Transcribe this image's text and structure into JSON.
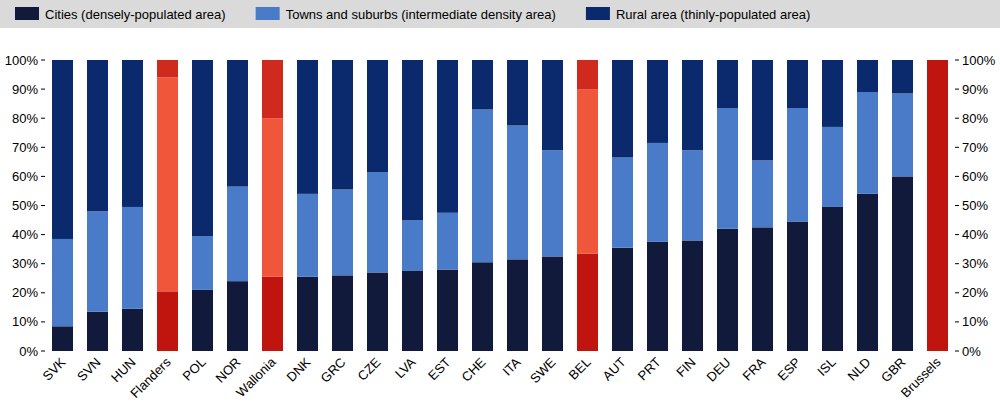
{
  "chart_data": {
    "type": "bar",
    "stacked": true,
    "legend": "top",
    "grid": false,
    "categories": [
      "SVK",
      "SVN",
      "HUN",
      "Flanders",
      "POL",
      "NOR",
      "Wallonia",
      "DNK",
      "GRC",
      "CZE",
      "LVA",
      "EST",
      "CHE",
      "ITA",
      "SWE",
      "BEL",
      "AUT",
      "PRT",
      "FIN",
      "DEU",
      "FRA",
      "ESP",
      "ISL",
      "NLD",
      "GBR",
      "Brussels"
    ],
    "ylim": [
      0,
      100
    ],
    "yticks": [
      {
        "value": 0,
        "label": "0%"
      },
      {
        "value": 10,
        "label": "10%"
      },
      {
        "value": 20,
        "label": "20%"
      },
      {
        "value": 30,
        "label": "30%"
      },
      {
        "value": 40,
        "label": "40%"
      },
      {
        "value": 50,
        "label": "50%"
      },
      {
        "value": 60,
        "label": "60%"
      },
      {
        "value": 70,
        "label": "70%"
      },
      {
        "value": 80,
        "label": "80%"
      },
      {
        "value": 90,
        "label": "90%"
      },
      {
        "value": 100,
        "label": "100%"
      }
    ],
    "series": [
      {
        "name": "Cities (densely-populated area)",
        "color": "#111a3a",
        "colors": [
          "#111a3a",
          "#111a3a",
          "#111a3a",
          "#c0140e",
          "#111a3a",
          "#111a3a",
          "#c0140e",
          "#111a3a",
          "#111a3a",
          "#111a3a",
          "#111a3a",
          "#111a3a",
          "#111a3a",
          "#111a3a",
          "#111a3a",
          "#c0140e",
          "#111a3a",
          "#111a3a",
          "#111a3a",
          "#111a3a",
          "#111a3a",
          "#111a3a",
          "#111a3a",
          "#111a3a",
          "#111a3a",
          "#c0140e"
        ],
        "values": [
          8.5,
          13.5,
          14.5,
          20.5,
          21,
          24,
          25.5,
          25.5,
          26,
          27,
          27.5,
          28,
          30.5,
          31.5,
          32.5,
          33.5,
          35.5,
          37.5,
          38,
          42,
          42.5,
          44.5,
          49.5,
          54,
          60,
          100
        ]
      },
      {
        "name": "Towns and suburbs (intermediate density area)",
        "color": "#4a7bc8",
        "colors": [
          "#4a7bc8",
          "#4a7bc8",
          "#4a7bc8",
          "#f0563a",
          "#4a7bc8",
          "#4a7bc8",
          "#f0563a",
          "#4a7bc8",
          "#4a7bc8",
          "#4a7bc8",
          "#4a7bc8",
          "#4a7bc8",
          "#4a7bc8",
          "#4a7bc8",
          "#4a7bc8",
          "#f0563a",
          "#4a7bc8",
          "#4a7bc8",
          "#4a7bc8",
          "#4a7bc8",
          "#4a7bc8",
          "#4a7bc8",
          "#4a7bc8",
          "#4a7bc8",
          "#4a7bc8",
          "#f0563a"
        ],
        "values": [
          30,
          34.5,
          35,
          73.5,
          18.5,
          32.5,
          54.5,
          28.5,
          29.5,
          34.5,
          17.5,
          19.5,
          52.5,
          46,
          36.5,
          56.5,
          31,
          34,
          31,
          41.5,
          23,
          39,
          27.5,
          35,
          28.5,
          0
        ]
      },
      {
        "name": "Rural area (thinly-populated area)",
        "color": "#0b2a6e",
        "colors": [
          "#0b2a6e",
          "#0b2a6e",
          "#0b2a6e",
          "#d02a1e",
          "#0b2a6e",
          "#0b2a6e",
          "#d02a1e",
          "#0b2a6e",
          "#0b2a6e",
          "#0b2a6e",
          "#0b2a6e",
          "#0b2a6e",
          "#0b2a6e",
          "#0b2a6e",
          "#0b2a6e",
          "#d02a1e",
          "#0b2a6e",
          "#0b2a6e",
          "#0b2a6e",
          "#0b2a6e",
          "#0b2a6e",
          "#0b2a6e",
          "#0b2a6e",
          "#0b2a6e",
          "#0b2a6e",
          "#d02a1e"
        ],
        "values": [
          61.5,
          52,
          50.5,
          6,
          60.5,
          43.5,
          20,
          46,
          44.5,
          38.5,
          55,
          52.5,
          17,
          22.5,
          31,
          10,
          33.5,
          28.5,
          31,
          16.5,
          34.5,
          16.5,
          23,
          11,
          11.5,
          0
        ]
      }
    ]
  }
}
